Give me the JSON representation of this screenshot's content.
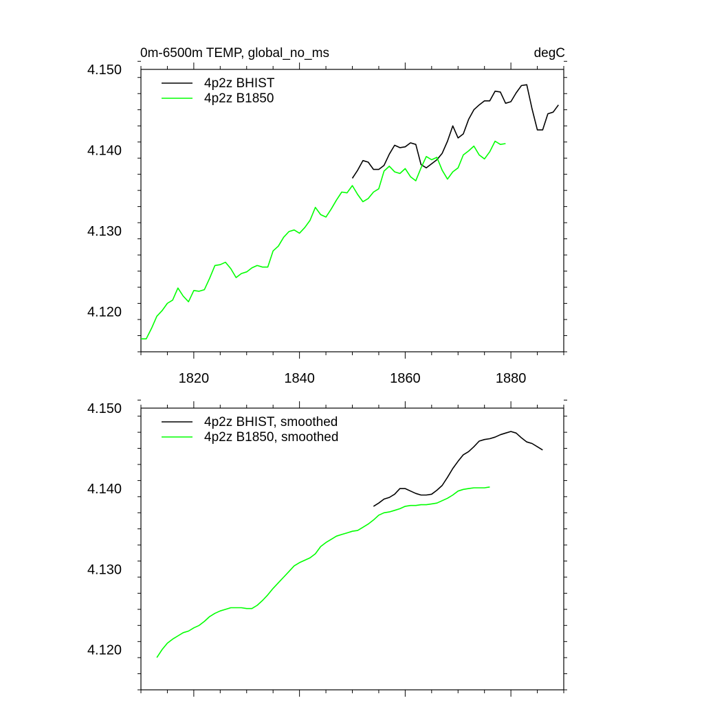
{
  "colors": {
    "bhist": "#000000",
    "b1850": "#00ff00"
  },
  "chart_data": [
    {
      "type": "line",
      "title": "0m-6500m TEMP, global_no_ms",
      "units": "degC",
      "xlim": [
        1810,
        1890
      ],
      "ylim": [
        4.115,
        4.15
      ],
      "x_ticks": [
        1820,
        1840,
        1860,
        1880
      ],
      "y_ticks": [
        4.12,
        4.13,
        4.14,
        4.15
      ],
      "y_tick_labels": [
        "4.120",
        "4.130",
        "4.140",
        "4.150"
      ],
      "x_tick_labels": [
        "1820",
        "1840",
        "1860",
        "1880"
      ],
      "legend_position": "top-left",
      "series": [
        {
          "name": "4p2z BHIST",
          "color": "#000000",
          "x": [
            1850,
            1851,
            1852,
            1853,
            1854,
            1855,
            1856,
            1857,
            1858,
            1859,
            1860,
            1861,
            1862,
            1863,
            1864,
            1865,
            1866,
            1867,
            1868,
            1869,
            1870,
            1871,
            1872,
            1873,
            1874,
            1875,
            1876,
            1877,
            1878,
            1879,
            1880,
            1881,
            1882,
            1883,
            1884,
            1885,
            1886,
            1887,
            1888,
            1889
          ],
          "y": [
            4.1365,
            4.1375,
            4.1387,
            4.1385,
            4.1376,
            4.1376,
            4.1381,
            4.1395,
            4.1406,
            4.1403,
            4.1404,
            4.1409,
            4.1407,
            4.1382,
            4.1378,
            4.1383,
            4.1388,
            4.1396,
            4.1411,
            4.143,
            4.1415,
            4.142,
            4.1438,
            4.145,
            4.1456,
            4.1461,
            4.1461,
            4.1473,
            4.1472,
            4.1458,
            4.146,
            4.1471,
            4.148,
            4.1481,
            4.1451,
            4.1425,
            4.1425,
            4.1445,
            4.1447,
            4.1456
          ]
        },
        {
          "name": "4p2z B1850",
          "color": "#00ff00",
          "x": [
            1810,
            1811,
            1812,
            1813,
            1814,
            1815,
            1816,
            1817,
            1818,
            1819,
            1820,
            1821,
            1822,
            1823,
            1824,
            1825,
            1826,
            1827,
            1828,
            1829,
            1830,
            1831,
            1832,
            1833,
            1834,
            1835,
            1836,
            1837,
            1838,
            1839,
            1840,
            1841,
            1842,
            1843,
            1844,
            1845,
            1846,
            1847,
            1848,
            1849,
            1850,
            1851,
            1852,
            1853,
            1854,
            1855,
            1856,
            1857,
            1858,
            1859,
            1860,
            1861,
            1862,
            1863,
            1864,
            1865,
            1866,
            1867,
            1868,
            1869,
            1870,
            1871,
            1872,
            1873,
            1874,
            1875,
            1876,
            1877,
            1878,
            1879
          ],
          "y": [
            4.1166,
            4.1166,
            4.1179,
            4.1194,
            4.1201,
            4.121,
            4.1214,
            4.1229,
            4.1219,
            4.1212,
            4.1226,
            4.1225,
            4.1227,
            4.1241,
            4.1257,
            4.1258,
            4.1261,
            4.1253,
            4.1242,
            4.1247,
            4.1249,
            4.1254,
            4.1257,
            4.1255,
            4.1255,
            4.1275,
            4.1281,
            4.1292,
            4.1299,
            4.1301,
            4.1297,
            4.1304,
            4.1313,
            4.1329,
            4.132,
            4.1317,
            4.1327,
            4.1338,
            4.1348,
            4.1347,
            4.1356,
            4.1345,
            4.1336,
            4.134,
            4.1348,
            4.1352,
            4.1374,
            4.138,
            4.1373,
            4.1371,
            4.1377,
            4.1367,
            4.1362,
            4.1378,
            4.1392,
            4.1388,
            4.1391,
            4.1375,
            4.1364,
            4.1373,
            4.1378,
            4.1394,
            4.1399,
            4.1405,
            4.1394,
            4.1389,
            4.1398,
            4.1411,
            4.1407,
            4.1408
          ]
        }
      ]
    },
    {
      "type": "line",
      "xlim": [
        1810,
        1890
      ],
      "ylim": [
        4.115,
        4.15
      ],
      "x_ticks": [
        1820,
        1840,
        1860,
        1880
      ],
      "y_ticks": [
        4.12,
        4.13,
        4.14,
        4.15
      ],
      "y_tick_labels": [
        "4.120",
        "4.130",
        "4.140",
        "4.150"
      ],
      "legend_position": "top-left",
      "series": [
        {
          "name": "4p2z BHIST, smoothed",
          "color": "#000000",
          "x": [
            1854,
            1855,
            1856,
            1857,
            1858,
            1859,
            1860,
            1861,
            1862,
            1863,
            1864,
            1865,
            1866,
            1867,
            1868,
            1869,
            1870,
            1871,
            1872,
            1873,
            1874,
            1875,
            1876,
            1877,
            1878,
            1879,
            1880,
            1881,
            1882,
            1883,
            1884,
            1885,
            1886
          ],
          "y": [
            4.1378,
            4.1382,
            4.1387,
            4.1389,
            4.1393,
            4.14,
            4.14,
            4.1397,
            4.1394,
            4.1392,
            4.1392,
            4.1393,
            4.1398,
            4.1404,
            4.1414,
            4.1425,
            4.1434,
            4.1442,
            4.1446,
            4.1452,
            4.1459,
            4.1461,
            4.1462,
            4.1464,
            4.1467,
            4.1469,
            4.1471,
            4.1469,
            4.1463,
            4.1458,
            4.1456,
            4.1452,
            4.1448
          ]
        },
        {
          "name": "4p2z B1850, smoothed",
          "color": "#00ff00",
          "x": [
            1813,
            1814,
            1815,
            1816,
            1817,
            1818,
            1819,
            1820,
            1821,
            1822,
            1823,
            1824,
            1825,
            1826,
            1827,
            1828,
            1829,
            1830,
            1831,
            1832,
            1833,
            1834,
            1835,
            1836,
            1837,
            1838,
            1839,
            1840,
            1841,
            1842,
            1843,
            1844,
            1845,
            1846,
            1847,
            1848,
            1849,
            1850,
            1851,
            1852,
            1853,
            1854,
            1855,
            1856,
            1857,
            1858,
            1859,
            1860,
            1861,
            1862,
            1863,
            1864,
            1865,
            1866,
            1867,
            1868,
            1869,
            1870,
            1871,
            1872,
            1873,
            1874,
            1875,
            1876
          ],
          "y": [
            4.119,
            4.12,
            4.1208,
            4.1213,
            4.1217,
            4.1221,
            4.1223,
            4.1227,
            4.123,
            4.1235,
            4.1241,
            4.1245,
            4.1248,
            4.125,
            4.1252,
            4.1252,
            4.1252,
            4.1251,
            4.1251,
            4.1255,
            4.1261,
            4.1268,
            4.1276,
            4.1283,
            4.129,
            4.1297,
            4.1304,
            4.1308,
            4.1311,
            4.1314,
            4.1319,
            4.1328,
            4.1333,
            4.1337,
            4.1341,
            4.1343,
            4.1345,
            4.1347,
            4.1348,
            4.1352,
            4.1356,
            4.1361,
            4.1367,
            4.137,
            4.1371,
            4.1373,
            4.1375,
            4.1378,
            4.1379,
            4.1379,
            4.138,
            4.138,
            4.1381,
            4.1382,
            4.1385,
            4.1388,
            4.1392,
            4.1397,
            4.1399,
            4.14,
            4.1401,
            4.1401,
            4.1401,
            4.1402
          ]
        }
      ]
    }
  ]
}
